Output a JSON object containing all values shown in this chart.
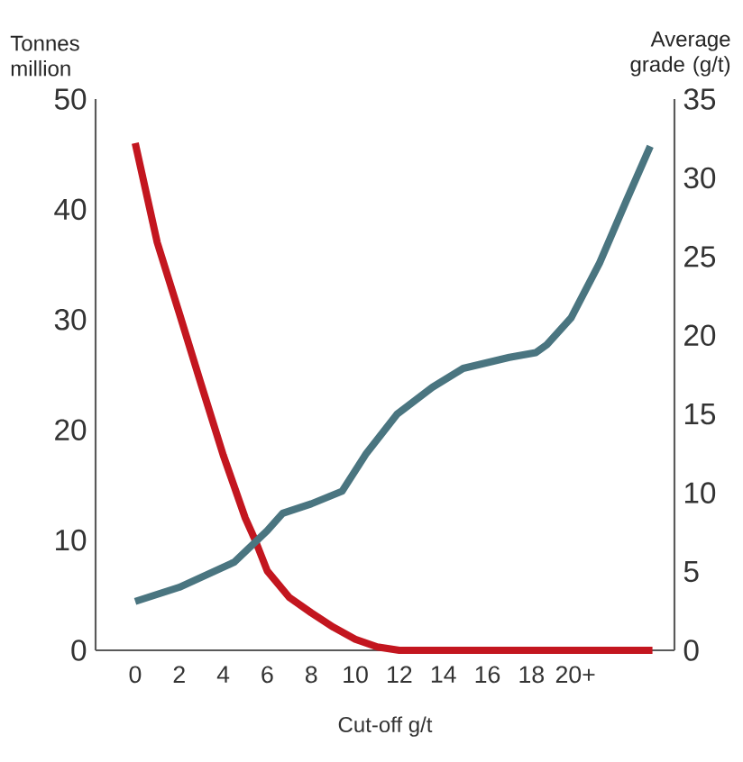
{
  "chart_data": {
    "type": "line",
    "xlabel": "Cut-off g/t",
    "ylabel": "Tonnes million",
    "y2label": "Average grade (g/t)",
    "xlim": [
      -1.8,
      24.5
    ],
    "xticks": [
      0,
      2,
      4,
      6,
      8,
      10,
      12,
      14,
      16,
      18,
      {
        "value": 20,
        "label": "20+"
      }
    ],
    "ylim": [
      0,
      50
    ],
    "yticks": [
      0,
      10,
      20,
      30,
      40,
      50
    ],
    "y2lim": [
      0,
      35
    ],
    "y2ticks": [
      0,
      5,
      10,
      15,
      20,
      25,
      30,
      35
    ],
    "series": [
      {
        "color": "#c3161f",
        "x": [
          0,
          1,
          2,
          3,
          4,
          5,
          5.45,
          6,
          7,
          8,
          9,
          10,
          11,
          12,
          14,
          17,
          20,
          23.5
        ],
        "values": [
          46,
          37,
          30.6,
          24.1,
          17.7,
          12,
          10,
          7.2,
          4.8,
          3.4,
          2.1,
          1,
          0.3,
          0,
          0,
          0,
          0,
          0
        ]
      },
      {
        "color": "#4a7580",
        "axis": "y2",
        "x": [
          0,
          2,
          4.5,
          6,
          6.7,
          8,
          9.4,
          10.5,
          11.9,
          13.5,
          14.9,
          17,
          18.2,
          18.7,
          19.8,
          21.1,
          22.3,
          23.4
        ],
        "values": [
          3.1,
          4,
          5.6,
          7.6,
          8.7,
          9.3,
          10.1,
          12.5,
          15,
          16.7,
          17.9,
          18.6,
          18.9,
          19.4,
          21.1,
          24.6,
          28.5,
          32
        ]
      }
    ]
  }
}
